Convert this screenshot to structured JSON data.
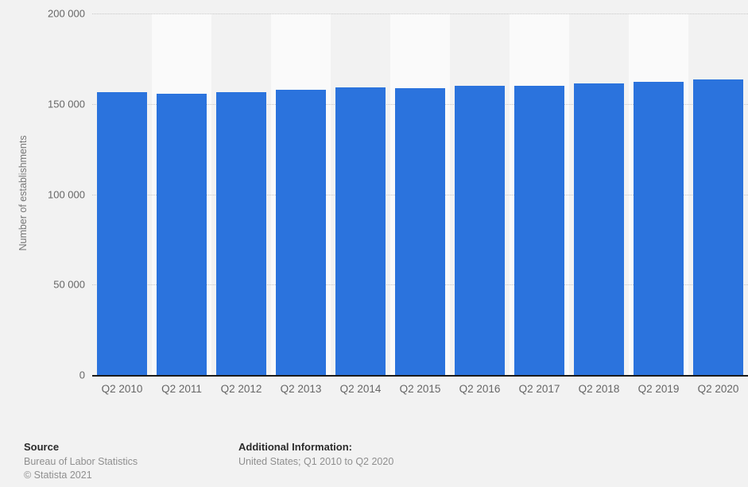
{
  "chart_data": {
    "type": "bar",
    "title": "",
    "xlabel": "",
    "ylabel": "Number of establishments",
    "categories": [
      "Q2 2010",
      "Q2 2011",
      "Q2 2012",
      "Q2 2013",
      "Q2 2014",
      "Q2 2015",
      "Q2 2016",
      "Q2 2017",
      "Q2 2018",
      "Q2 2019",
      "Q2 2020"
    ],
    "values": [
      156500,
      155500,
      156500,
      157700,
      159300,
      158800,
      160200,
      160200,
      161300,
      162000,
      163700
    ],
    "ylim": [
      0,
      200000
    ],
    "ytick_labels": [
      "0",
      "50 000",
      "100 000",
      "150 000",
      "200 000"
    ],
    "grid": "horizontal-dotted",
    "legend": "none",
    "bar_color": "#2b73dd",
    "band_color_odd": "#f2f2f2",
    "band_color_even": "#fafafa"
  },
  "footer": {
    "source_label": "Source",
    "source_name": "Bureau of Labor Statistics",
    "copyright": "© Statista 2021",
    "additional_info_label": "Additional Information:",
    "additional_info": "United States; Q1 2010 to Q2 2020"
  }
}
